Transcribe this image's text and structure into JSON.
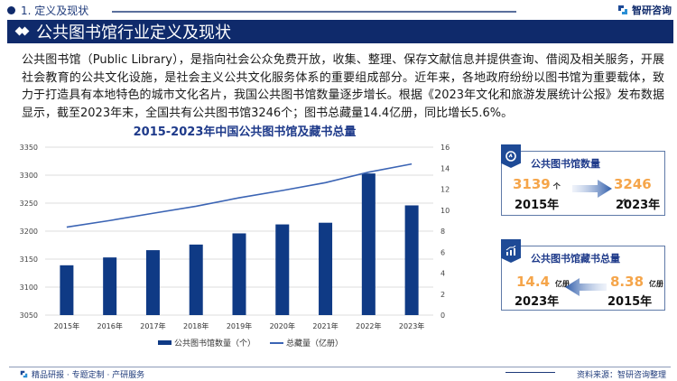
{
  "header": {
    "section_label": "1. 定义及现状",
    "brand": "智研咨询",
    "title": "公共图书馆行业定义及现状"
  },
  "intro": {
    "text": "公共图书馆（Public Library），是指向社会公众免费开放，收集、整理、保存文献信息并提供查询、借阅及相关服务，开展社会教育的公共文化设施，是社会主义公共文化服务体系的重要组成部分。近年来，各地政府纷纷以图书馆为重要载体，致力于打造具有本地特色的城市文化名片，我国公共图书馆数量逐步增长。根据《2023年文化和旅游发展统计公报》发布数据显示，截至2023年末，全国共有公共图书馆3246个；图书总藏量14.4亿册，同比增长5.6%。"
  },
  "chart_data": {
    "type": "bar",
    "title": "2015-2023年中国公共图书馆及藏书总量",
    "categories": [
      "2015年",
      "2016年",
      "2017年",
      "2018年",
      "2019年",
      "2020年",
      "2021年",
      "2022年",
      "2023年"
    ],
    "series": [
      {
        "name": "公共图书馆数量（个）",
        "type": "bar",
        "axis": "left",
        "color": "#0f3a85",
        "values": [
          3139,
          3153,
          3166,
          3176,
          3196,
          3212,
          3215,
          3303,
          3246
        ]
      },
      {
        "name": "总藏量（亿册）",
        "type": "line",
        "axis": "right",
        "color": "#3b64b4",
        "values": [
          8.38,
          9.01,
          9.7,
          10.37,
          11.18,
          11.87,
          12.62,
          13.62,
          14.4
        ]
      }
    ],
    "y_left": {
      "min": 3050,
      "max": 3350,
      "ticks": [
        3050,
        3100,
        3150,
        3200,
        3250,
        3300,
        3350
      ]
    },
    "y_right": {
      "min": 0,
      "max": 16,
      "ticks": [
        0,
        2,
        4,
        6,
        8,
        10,
        12,
        14,
        16
      ]
    },
    "grid": true,
    "legend_position": "bottom"
  },
  "cards": [
    {
      "title": "公共图书馆数量",
      "left_value": "3139",
      "left_unit": "个",
      "left_year": "2015年",
      "right_value": "3246",
      "right_unit": "个",
      "right_year": "2023年",
      "arrow": "right"
    },
    {
      "title": "公共图书馆藏书总量",
      "left_value": "14.4",
      "left_unit": "亿册",
      "left_year": "2023年",
      "right_value": "8.38",
      "right_unit": "亿册",
      "right_year": "2015年",
      "arrow": "left"
    }
  ],
  "footer": {
    "tagline": "精品研报 · 专题定制 · 产研服务",
    "source": "资料来源：智研咨询整理"
  },
  "colors": {
    "navy": "#0f2a6b",
    "bar": "#0f3a85",
    "line": "#3b64b4",
    "accent_orange": "#f5a54a"
  }
}
